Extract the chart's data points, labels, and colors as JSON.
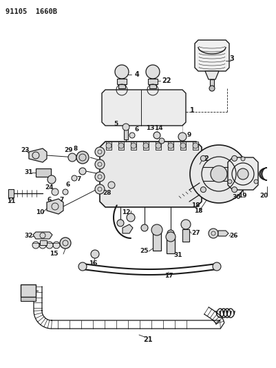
{
  "header": "91105  1660B",
  "bg_color": "#ffffff",
  "line_color": "#1a1a1a",
  "fig_width": 4.01,
  "fig_height": 5.33,
  "dpi": 100
}
